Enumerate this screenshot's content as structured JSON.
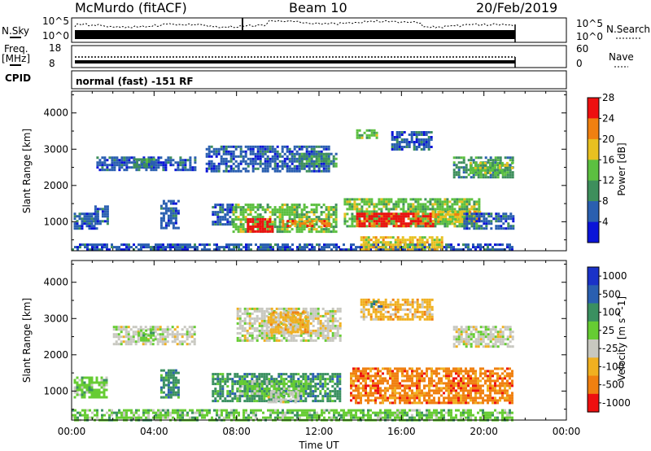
{
  "header": {
    "station": "McMurdo (fitACF)",
    "beam": "Beam 10",
    "date": "20/Feb/2019"
  },
  "strip_labels": {
    "nsky": "N.Sky",
    "nsearch": "N.Search",
    "freq": "Freq.",
    "freq_unit": "[MHz]",
    "nave": "Nave",
    "cpid": "CPID",
    "cpid_value": "normal (fast) -151 RF"
  },
  "noise_strip": {
    "left_ticks": [
      "10^5",
      "10^0"
    ],
    "right_ticks": [
      "10^5",
      "10^0"
    ]
  },
  "freq_strip": {
    "left_ticks": [
      "18",
      "8"
    ],
    "right_ticks": [
      "60",
      "0"
    ]
  },
  "chart_data": [
    {
      "type": "heatmap",
      "name": "power",
      "ylabel": "Slant Range [km]",
      "xlim": [
        0,
        24
      ],
      "ylim": [
        200,
        4600
      ],
      "yticks": [
        "1000",
        "2000",
        "3000",
        "4000"
      ],
      "colorbar": {
        "label": "Power [dB]",
        "ticks": [
          "4",
          "8",
          "12",
          "16",
          "20",
          "24",
          "28"
        ],
        "colors": [
          "#0a14d8",
          "#2a5fb0",
          "#3e8f5c",
          "#5cc040",
          "#e8c020",
          "#f08010",
          "#ee1010"
        ]
      },
      "regions": [
        {
          "x0": 0.1,
          "x1": 1.2,
          "y0": 800,
          "y1": 1250,
          "c": 1
        },
        {
          "x0": 1.1,
          "x1": 1.7,
          "y0": 950,
          "y1": 1450,
          "c": 1
        },
        {
          "x0": 4.3,
          "x1": 5.2,
          "y0": 800,
          "y1": 1600,
          "c": 1
        },
        {
          "x0": 6.8,
          "x1": 7.8,
          "y0": 900,
          "y1": 1500,
          "c": 1
        },
        {
          "x0": 7.8,
          "x1": 12.8,
          "y0": 700,
          "y1": 1500,
          "c": 3
        },
        {
          "x0": 8.5,
          "x1": 9.8,
          "y0": 700,
          "y1": 1100,
          "c": 6
        },
        {
          "x0": 10.2,
          "x1": 12.5,
          "y0": 850,
          "y1": 1050,
          "c": 5
        },
        {
          "x0": 13.2,
          "x1": 19.8,
          "y0": 850,
          "y1": 1650,
          "c": 3
        },
        {
          "x0": 13.8,
          "x1": 17.5,
          "y0": 900,
          "y1": 1250,
          "c": 6
        },
        {
          "x0": 17.5,
          "x1": 19.8,
          "y0": 1000,
          "y1": 1300,
          "c": 4
        },
        {
          "x0": 19.0,
          "x1": 21.4,
          "y0": 800,
          "y1": 1250,
          "c": 1
        },
        {
          "x0": 1.2,
          "x1": 6.0,
          "y0": 2400,
          "y1": 2800,
          "c": 1
        },
        {
          "x0": 3.0,
          "x1": 4.0,
          "y0": 2500,
          "y1": 2750,
          "c": 2
        },
        {
          "x0": 6.5,
          "x1": 12.5,
          "y0": 2400,
          "y1": 3100,
          "c": 1
        },
        {
          "x0": 11.0,
          "x1": 12.8,
          "y0": 2500,
          "y1": 2900,
          "c": 2
        },
        {
          "x0": 13.8,
          "x1": 14.8,
          "y0": 3300,
          "y1": 3550,
          "c": 3
        },
        {
          "x0": 15.5,
          "x1": 17.5,
          "y0": 3000,
          "y1": 3500,
          "c": 1
        },
        {
          "x0": 18.5,
          "x1": 21.4,
          "y0": 2250,
          "y1": 2800,
          "c": 2
        },
        {
          "x0": 19.3,
          "x1": 21.4,
          "y0": 2350,
          "y1": 2650,
          "c": 3
        },
        {
          "x0": 0.0,
          "x1": 21.4,
          "y0": 200,
          "y1": 400,
          "c": 1
        },
        {
          "x0": 14.0,
          "x1": 18.0,
          "y0": 250,
          "y1": 600,
          "c": 4
        }
      ]
    },
    {
      "type": "heatmap",
      "name": "velocity",
      "ylabel": "Slant Range [km]",
      "xlabel": "Time UT",
      "xlim": [
        0,
        24
      ],
      "ylim": [
        200,
        4600
      ],
      "xticks": [
        "00:00",
        "04:00",
        "08:00",
        "12:00",
        "16:00",
        "20:00",
        "00:00"
      ],
      "yticks": [
        "1000",
        "2000",
        "3000",
        "4000"
      ],
      "colorbar": {
        "label": "Velocity [m s^-1]",
        "ticks": [
          "1000",
          "500",
          "100",
          "25",
          "-25",
          "-100",
          "-500",
          "-1000"
        ],
        "colors": [
          "#1a32c8",
          "#2a5fb0",
          "#3a9060",
          "#66cc33",
          "#c8c8c0",
          "#f0b020",
          "#f08010",
          "#ee1010"
        ]
      },
      "regions": [
        {
          "x0": 0.1,
          "x1": 1.7,
          "y0": 850,
          "y1": 1400,
          "c": 3
        },
        {
          "x0": 4.3,
          "x1": 5.2,
          "y0": 800,
          "y1": 1600,
          "c": 2
        },
        {
          "x0": 6.8,
          "x1": 13.0,
          "y0": 700,
          "y1": 1500,
          "c": 2
        },
        {
          "x0": 8.0,
          "x1": 11.5,
          "y0": 850,
          "y1": 1300,
          "c": 3
        },
        {
          "x0": 9.5,
          "x1": 11.0,
          "y0": 700,
          "y1": 1000,
          "c": 4
        },
        {
          "x0": 13.5,
          "x1": 21.4,
          "y0": 700,
          "y1": 1650,
          "c": 6
        },
        {
          "x0": 2.0,
          "x1": 6.0,
          "y0": 2300,
          "y1": 2800,
          "c": 4
        },
        {
          "x0": 3.2,
          "x1": 4.0,
          "y0": 2400,
          "y1": 2700,
          "c": 3
        },
        {
          "x0": 8.0,
          "x1": 13.0,
          "y0": 2400,
          "y1": 3300,
          "c": 4
        },
        {
          "x0": 9.5,
          "x1": 11.5,
          "y0": 2600,
          "y1": 3200,
          "c": 5
        },
        {
          "x0": 14.0,
          "x1": 17.5,
          "y0": 3000,
          "y1": 3550,
          "c": 5
        },
        {
          "x0": 14.5,
          "x1": 15.0,
          "y0": 3300,
          "y1": 3500,
          "c": 2
        },
        {
          "x0": 18.5,
          "x1": 21.4,
          "y0": 2250,
          "y1": 2800,
          "c": 4
        },
        {
          "x0": 0.0,
          "x1": 21.4,
          "y0": 200,
          "y1": 500,
          "c": 3
        }
      ]
    }
  ]
}
